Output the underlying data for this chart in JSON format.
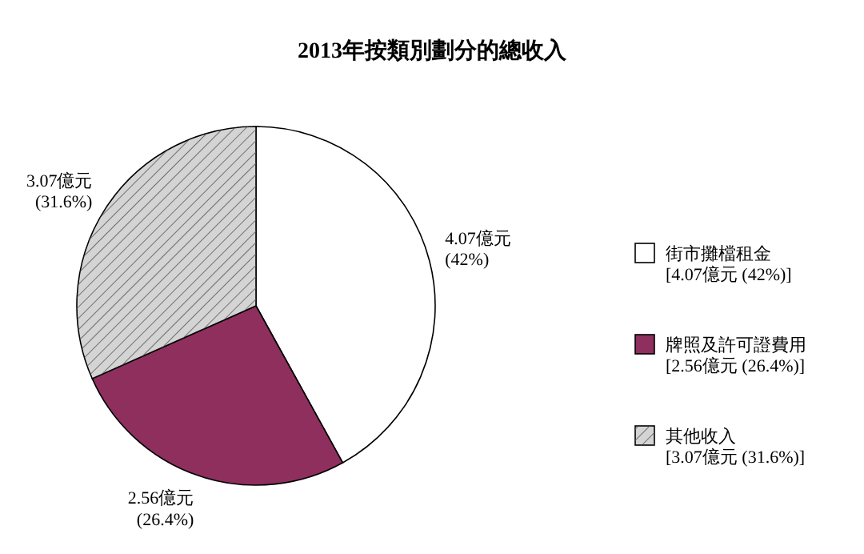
{
  "chart_data": {
    "type": "pie",
    "title": "2013年按類別劃分的總收入",
    "categories": [
      "街市攤檔租金",
      "牌照及許可證費用",
      "其他收入"
    ],
    "values": [
      4.07,
      2.56,
      3.07
    ],
    "colors": [
      "#ffffff",
      "#8e2f5e",
      "#d4d4d4"
    ],
    "value_labels": [
      "4.07億元\n(42%)",
      "2.56億元\n(26.4%)",
      "3.07億元\n(31.6%)"
    ],
    "annotations": [
      "[4.07億元 (42%)]",
      "[2.56億元 (26.4%)]",
      "[3.07億元 (31.6%)]"
    ],
    "legend": "right"
  }
}
